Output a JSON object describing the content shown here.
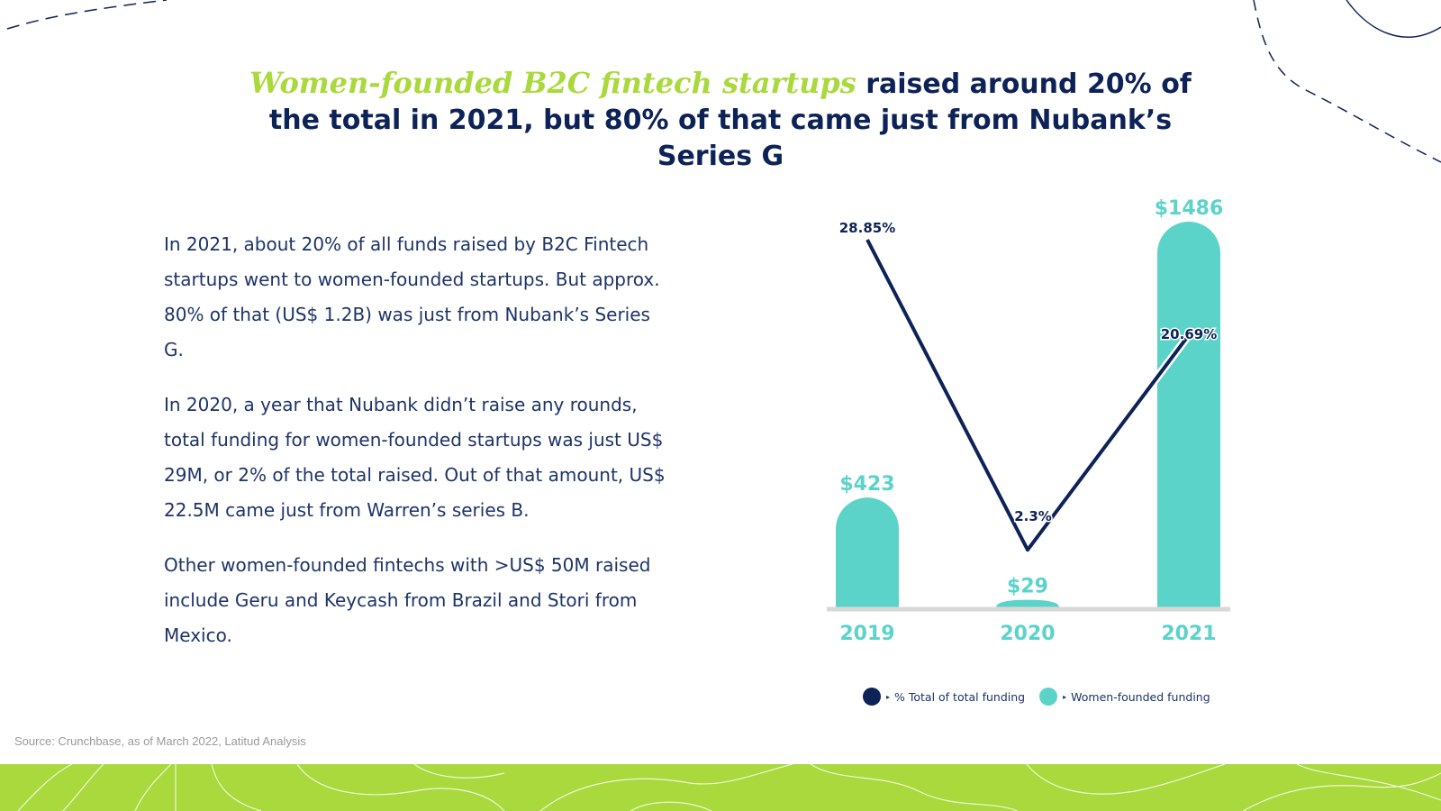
{
  "title": {
    "highlight": "Women-founded B2C fintech startups",
    "rest": " raised around 20% of the total in 2021, but 80% of that came just from Nubank’s Series G"
  },
  "paragraphs": [
    "In 2021, about 20% of all funds raised by B2C Fintech startups went to women-founded startups. But approx. 80% of that (US$ 1.2B) was just from Nubank’s Series G.",
    "In 2020, a year that Nubank didn’t raise any rounds, total funding for women-founded startups was just US$ 29M, or 2% of the total raised. Out of that amount, US$ 22.5M came just from Warren’s series B.",
    "Other women-founded fintechs with >US$ 50M raised include Geru and Keycash from Brazil and Stori from Mexico."
  ],
  "source": "Source: Crunchbase, as of March 2022, Latitud Analysis",
  "legend": {
    "line_label": "% Total of total funding",
    "bar_label": "Women-founded funding"
  },
  "colors": {
    "navy": "#0d2257",
    "teal": "#5cd3c9",
    "lime": "#a9d93c",
    "baseline": "#d9d9d9"
  },
  "chart_data": {
    "type": "bar",
    "categories": [
      "2019",
      "2020",
      "2021"
    ],
    "series": [
      {
        "name": "Women-founded funding",
        "type": "bar",
        "values": [
          423,
          29,
          1486
        ],
        "labels": [
          "$423",
          "$29",
          "$1486"
        ]
      },
      {
        "name": "% Total of total funding",
        "type": "line",
        "values": [
          28.85,
          2.3,
          20.69
        ],
        "labels": [
          "28.85%",
          "2.3%",
          "20.69%"
        ]
      }
    ]
  }
}
